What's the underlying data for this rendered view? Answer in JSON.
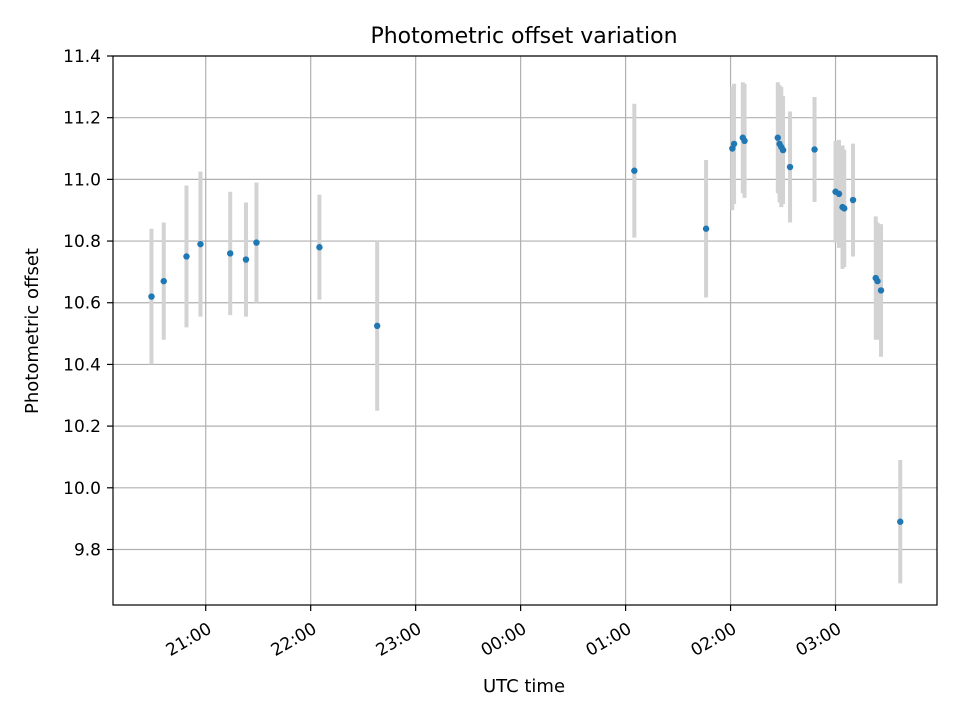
{
  "chart_data": {
    "type": "scatter",
    "title": "Photometric offset variation",
    "xlabel": "UTC time",
    "ylabel": "Photometric offset",
    "x_axis_type": "time",
    "xlim": [
      "20:07",
      "03:58"
    ],
    "ylim": [
      9.62,
      11.4
    ],
    "xticks": [
      "21:00",
      "22:00",
      "23:00",
      "00:00",
      "01:00",
      "02:00",
      "03:00"
    ],
    "yticks": [
      "9.8",
      "10.0",
      "10.2",
      "10.4",
      "10.6",
      "10.8",
      "11.0",
      "11.2",
      "11.4"
    ],
    "grid": true,
    "legend": "none",
    "colors": {
      "point": "#1f77b4",
      "error_bar": "#d3d3d3",
      "grid": "#b0b0b0"
    },
    "points": [
      {
        "x": "20:29",
        "y": 10.62,
        "err": 0.22
      },
      {
        "x": "20:36",
        "y": 10.67,
        "err": 0.19
      },
      {
        "x": "20:49",
        "y": 10.75,
        "err": 0.23
      },
      {
        "x": "20:57",
        "y": 10.79,
        "err": 0.235
      },
      {
        "x": "21:14",
        "y": 10.76,
        "err": 0.2
      },
      {
        "x": "21:23",
        "y": 10.74,
        "err": 0.185
      },
      {
        "x": "21:29",
        "y": 10.795,
        "err": 0.195
      },
      {
        "x": "22:05",
        "y": 10.78,
        "err": 0.17
      },
      {
        "x": "22:38",
        "y": 10.525,
        "err": 0.275
      },
      {
        "x": "01:05",
        "y": 11.028,
        "err": 0.217
      },
      {
        "x": "01:46",
        "y": 10.84,
        "err": 0.223
      },
      {
        "x": "02:01",
        "y": 11.1,
        "err": 0.2
      },
      {
        "x": "02:02",
        "y": 11.115,
        "err": 0.195
      },
      {
        "x": "02:07",
        "y": 11.135,
        "err": 0.18
      },
      {
        "x": "02:08",
        "y": 11.125,
        "err": 0.185
      },
      {
        "x": "02:27",
        "y": 11.135,
        "err": 0.18
      },
      {
        "x": "02:28",
        "y": 11.115,
        "err": 0.19
      },
      {
        "x": "02:29",
        "y": 11.105,
        "err": 0.195
      },
      {
        "x": "02:30",
        "y": 11.095,
        "err": 0.175
      },
      {
        "x": "02:34",
        "y": 11.04,
        "err": 0.18
      },
      {
        "x": "02:48",
        "y": 11.097,
        "err": 0.17
      },
      {
        "x": "03:00",
        "y": 10.96,
        "err": 0.165
      },
      {
        "x": "03:02",
        "y": 10.953,
        "err": 0.175
      },
      {
        "x": "03:04",
        "y": 10.91,
        "err": 0.2
      },
      {
        "x": "03:05",
        "y": 10.906,
        "err": 0.19
      },
      {
        "x": "03:10",
        "y": 10.933,
        "err": 0.183
      },
      {
        "x": "03:23",
        "y": 10.68,
        "err": 0.2
      },
      {
        "x": "03:24",
        "y": 10.67,
        "err": 0.19
      },
      {
        "x": "03:26",
        "y": 10.64,
        "err": 0.215
      },
      {
        "x": "03:37",
        "y": 9.89,
        "err": 0.2
      }
    ]
  }
}
